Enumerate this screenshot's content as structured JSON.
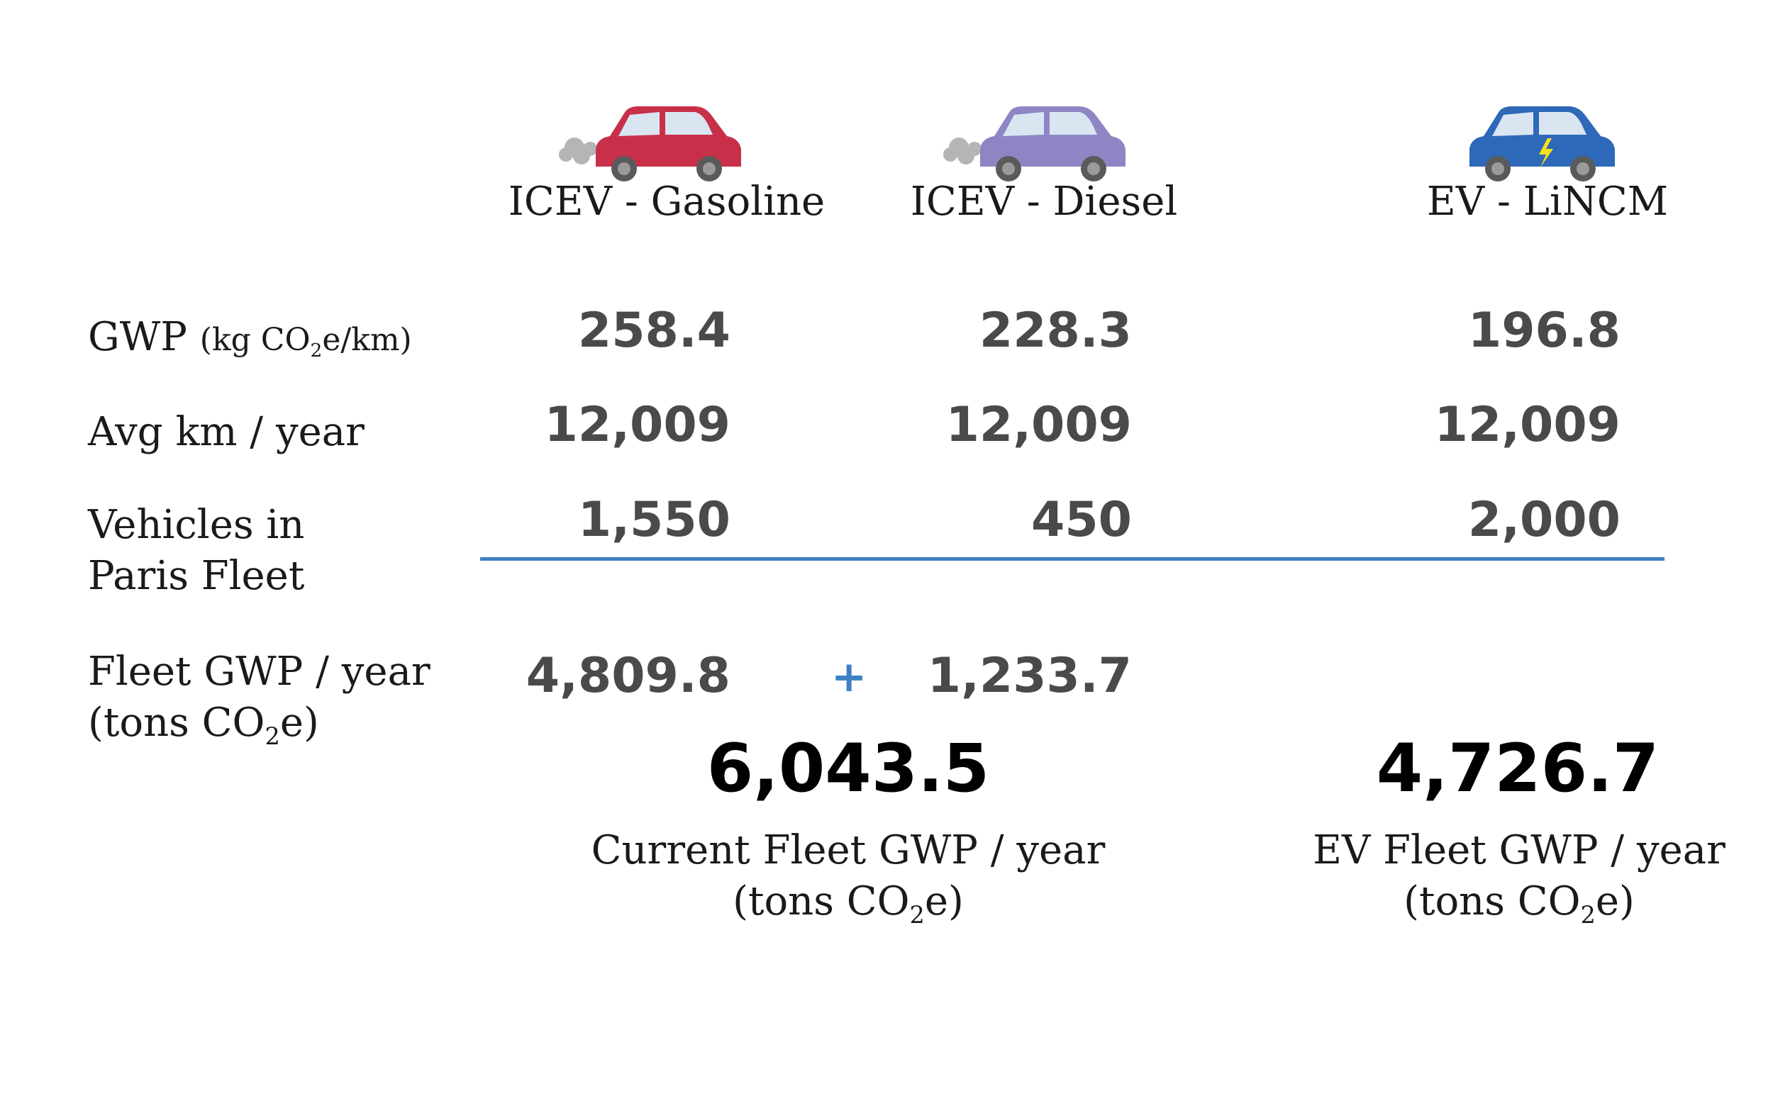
{
  "vehicles": [
    {
      "name": "ICEV - Gasoline",
      "icon": "gasoline-car-icon",
      "color": "#c8304a",
      "gwp": "258.4",
      "km": "12,009",
      "count": "1,550",
      "fleet": "4,809.8"
    },
    {
      "name": "ICEV - Diesel",
      "icon": "diesel-car-icon",
      "color": "#8e86c4",
      "gwp": "228.3",
      "km": "12,009",
      "count": "450",
      "fleet": "1,233.7"
    },
    {
      "name": "EV - LiNCM",
      "icon": "electric-car-icon",
      "color": "#2e68b8",
      "gwp": "196.8",
      "km": "12,009",
      "count": "2,000"
    }
  ],
  "labels": {
    "gwp_main": "GWP",
    "gwp_unit_a": "(kg CO",
    "gwp_unit_sub": "2",
    "gwp_unit_b": "e/km)",
    "km": "Avg km / year",
    "vehicles_line1": "Vehicles in",
    "vehicles_line2": "Paris Fleet",
    "fleet_line1": "Fleet GWP / year",
    "fleet_line2a": "(tons CO",
    "fleet_line2sub": "2",
    "fleet_line2b": "e)"
  },
  "operator": "+",
  "totals": {
    "current": {
      "value": "6,043.5",
      "line1": "Current Fleet GWP / year",
      "line2a": "(tons CO",
      "line2sub": "2",
      "line2b": "e)"
    },
    "ev": {
      "value": "4,726.7",
      "line1": "EV Fleet GWP / year",
      "line2a": "(tons CO",
      "line2sub": "2",
      "line2b": "e)"
    }
  },
  "accent": "#3f7fc4"
}
